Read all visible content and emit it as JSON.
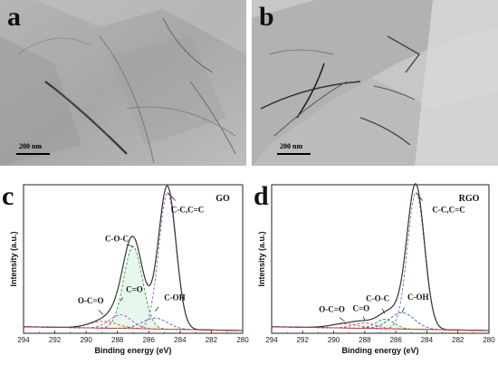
{
  "panels": {
    "a": {
      "label": "a",
      "scale_bar": "200 nm"
    },
    "b": {
      "label": "b",
      "scale_bar": "200 nm"
    },
    "c": {
      "label": "c",
      "sample": "GO",
      "xlabel": "Binding energy (eV)",
      "ylabel": "Intensity (a.u.)",
      "annotations": [
        "C-C,C=C",
        "C-O-C",
        "C=O",
        "O-C=O",
        "C-OH"
      ]
    },
    "d": {
      "label": "d",
      "sample": "RGO",
      "xlabel": "Binding energy (eV)",
      "ylabel": "Intensity (a.u.)",
      "annotations": [
        "C-C,C=C",
        "C-O-C",
        "C-OH",
        "O-C=O",
        "C=O"
      ]
    }
  },
  "chart_data": [
    {
      "type": "line",
      "panel": "c",
      "title": "GO",
      "xlabel": "Binding energy (eV)",
      "ylabel": "Intensity (a.u.)",
      "x_ticks": [
        294,
        292,
        290,
        288,
        286,
        284,
        282,
        280
      ],
      "xlim": [
        294,
        280
      ],
      "peaks": [
        {
          "name": "C-C,C=C",
          "center": 284.8,
          "height": 1.0
        },
        {
          "name": "C-O-C",
          "center": 287.0,
          "height": 0.6
        },
        {
          "name": "C=O",
          "center": 287.8,
          "height": 0.1
        },
        {
          "name": "O-C=O",
          "center": 288.9,
          "height": 0.05
        },
        {
          "name": "C-OH",
          "center": 285.6,
          "height": 0.08
        }
      ],
      "colors": {
        "envelope": "#333333",
        "cc": "#9b59b6",
        "coc": "#2e9a3a",
        "co": "#d63bd6",
        "ooc": "#b5651d",
        "coh": "#3060c0",
        "fill": "#e8f7ee"
      }
    },
    {
      "type": "line",
      "panel": "d",
      "title": "RGO",
      "xlabel": "Binding energy (eV)",
      "ylabel": "Intensity (a.u.)",
      "x_ticks": [
        294,
        292,
        290,
        288,
        286,
        284,
        282,
        280
      ],
      "xlim": [
        294,
        280
      ],
      "peaks": [
        {
          "name": "C-C,C=C",
          "center": 284.7,
          "height": 1.0
        },
        {
          "name": "C-OH",
          "center": 285.6,
          "height": 0.12
        },
        {
          "name": "C-O-C",
          "center": 286.7,
          "height": 0.07
        },
        {
          "name": "C=O",
          "center": 288.0,
          "height": 0.04
        },
        {
          "name": "O-C=O",
          "center": 289.3,
          "height": 0.03
        }
      ],
      "colors": {
        "envelope": "#333333",
        "cc": "#9b59b6",
        "coc": "#2e9a3a",
        "co": "#d63bd6",
        "ooc": "#b5651d",
        "coh": "#3060c0",
        "fill": "#e8f7ee"
      }
    }
  ]
}
